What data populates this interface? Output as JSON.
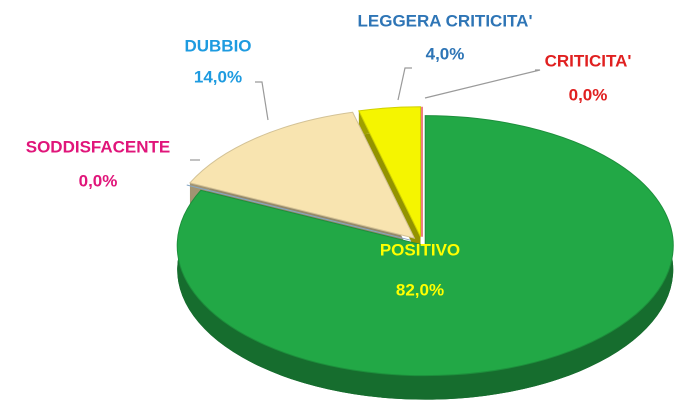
{
  "chart_data": {
    "type": "pie",
    "categories": [
      "POSITIVO",
      "SODDISFACENTE",
      "DUBBIO",
      "LEGGERA CRITICITA'",
      "CRITICITA'"
    ],
    "values": [
      82.0,
      0.0,
      14.0,
      4.0,
      0.0
    ],
    "value_labels": [
      "82,0%",
      "0,0%",
      "14,0%",
      "4,0%",
      "0,0%"
    ],
    "colors": [
      "#22a846",
      "#9dc3e6",
      "#f8e4b0",
      "#f5f500",
      "#ff0000"
    ],
    "label_colors": [
      "#ffff00",
      "#e0157a",
      "#1e9be0",
      "#2e75b6",
      "#e02020"
    ]
  }
}
